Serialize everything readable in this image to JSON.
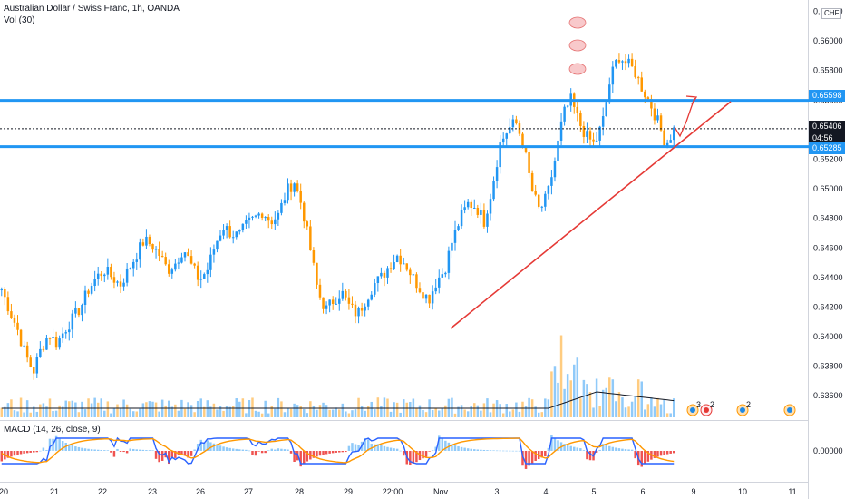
{
  "header": {
    "symbol_line": "Australian Dollar / Swiss Franc, 1h, OANDA",
    "volume_line": "Vol (30)",
    "macd_line": "MACD (14, 26, close, 9)",
    "currency_badge": "CHF"
  },
  "price_axis": {
    "ticks": [
      "0.66200",
      "0.66000",
      "0.65800",
      "0.65600",
      "0.65400",
      "0.65200",
      "0.65000",
      "0.64800",
      "0.64600",
      "0.64400",
      "0.64200",
      "0.64000",
      "0.63800",
      "0.63600"
    ],
    "macd_tick": "0.00000"
  },
  "time_axis": {
    "ticks": [
      "20",
      "21",
      "22",
      "23",
      "26",
      "27",
      "28",
      "29",
      "22:00",
      "Nov",
      "3",
      "4",
      "5",
      "6",
      "9",
      "10",
      "11"
    ]
  },
  "price_tags": {
    "resistance": "0.65598",
    "current": "0.65406",
    "countdown": "04:56",
    "support": "0.65285"
  },
  "colors": {
    "up_candle": "#2196f3",
    "down_candle": "#ff9800",
    "level_line": "#2196f3",
    "trendline": "#e53935",
    "macd_line": "#2962ff",
    "signal_line": "#ff9800",
    "volume_ma": "#131722"
  },
  "event_markers": [
    {
      "icon": "dividend-event-icon",
      "count": "3"
    },
    {
      "icon": "economic-event-icon",
      "count": "2"
    },
    {
      "icon": "earnings-event-icon",
      "count": "2"
    },
    {
      "icon": "news-event-icon",
      "count": ""
    }
  ],
  "chart_data": {
    "type": "candlestick",
    "title": "Australian Dollar / Swiss Franc, 1h, OANDA",
    "y_axis": {
      "min": 0.6354,
      "max": 0.6624,
      "scale": "linear"
    },
    "x_ticks": [
      "20",
      "21",
      "22",
      "23",
      "26",
      "27",
      "28",
      "29",
      "22:00",
      "Nov",
      "3",
      "4",
      "5",
      "6",
      "9",
      "10",
      "11"
    ],
    "close_path": [
      0.6432,
      0.6418,
      0.6405,
      0.6388,
      0.6376,
      0.6392,
      0.6402,
      0.6395,
      0.6405,
      0.6412,
      0.642,
      0.6432,
      0.644,
      0.6445,
      0.644,
      0.6435,
      0.6445,
      0.6455,
      0.6465,
      0.6462,
      0.6455,
      0.6445,
      0.645,
      0.646,
      0.6448,
      0.6438,
      0.6445,
      0.6462,
      0.6475,
      0.647,
      0.6468,
      0.6476,
      0.648,
      0.6485,
      0.6478,
      0.6482,
      0.6498,
      0.6505,
      0.6488,
      0.646,
      0.643,
      0.6418,
      0.6425,
      0.643,
      0.642,
      0.6415,
      0.6425,
      0.6435,
      0.644,
      0.6448,
      0.6455,
      0.645,
      0.644,
      0.6432,
      0.6425,
      0.6438,
      0.6445,
      0.6465,
      0.648,
      0.649,
      0.6488,
      0.6478,
      0.65,
      0.653,
      0.654,
      0.6545,
      0.653,
      0.65,
      0.6485,
      0.6495,
      0.652,
      0.655,
      0.656,
      0.6545,
      0.6535,
      0.653,
      0.6545,
      0.6575,
      0.659,
      0.6585,
      0.658,
      0.6568,
      0.6558,
      0.6545,
      0.653,
      0.654
    ],
    "horizontal_levels": [
      0.65598,
      0.65285
    ],
    "current_price": 0.65406,
    "trendline": {
      "from": {
        "bar_index": 55,
        "price": 0.6411
      },
      "to": {
        "bar_index": 85,
        "price": 0.653
      }
    },
    "volume": {
      "label": "Vol (30)",
      "spike_region": "Nov 4",
      "ma_period": 30
    },
    "macd": {
      "fast": 14,
      "slow": 26,
      "signal": 9,
      "source": "close",
      "zero_label": "0.00000"
    },
    "annotations": [
      "three pink ellipse markers above peak",
      "red zig-zag arrow projection upward"
    ]
  }
}
